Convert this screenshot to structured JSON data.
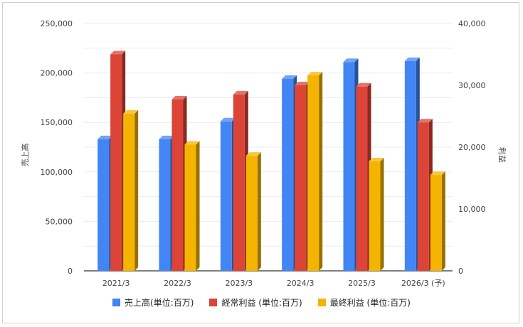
{
  "chart_data": {
    "type": "bar",
    "categories": [
      "2021/3",
      "2022/3",
      "2023/3",
      "2024/3",
      "2025/3",
      "2026/3 (予)"
    ],
    "left_axis": {
      "label": "売上高",
      "range": [
        0,
        250000
      ],
      "ticks": [
        "0",
        "50,000",
        "100,000",
        "150,000",
        "200,000",
        "250,000"
      ]
    },
    "right_axis": {
      "label": "利益",
      "range": [
        0,
        40000
      ],
      "ticks": [
        "0",
        "10,000",
        "20,000",
        "30,000",
        "40,000"
      ]
    },
    "series": [
      {
        "name": "売上高(単位:百万)",
        "axis": "left",
        "color": "#4285f4",
        "values": [
          133000,
          133000,
          151000,
          194000,
          211000,
          212000
        ]
      },
      {
        "name": "経常利益 (単位:百万)",
        "axis": "right",
        "color": "#db4437",
        "values": [
          35000,
          27700,
          28500,
          30000,
          29800,
          24000
        ]
      },
      {
        "name": "最終利益 (単位:百万)",
        "axis": "right",
        "color": "#f4b400",
        "values": [
          25400,
          20400,
          18600,
          31600,
          17700,
          15500
        ]
      }
    ],
    "grid": true,
    "legend": "bottom"
  }
}
